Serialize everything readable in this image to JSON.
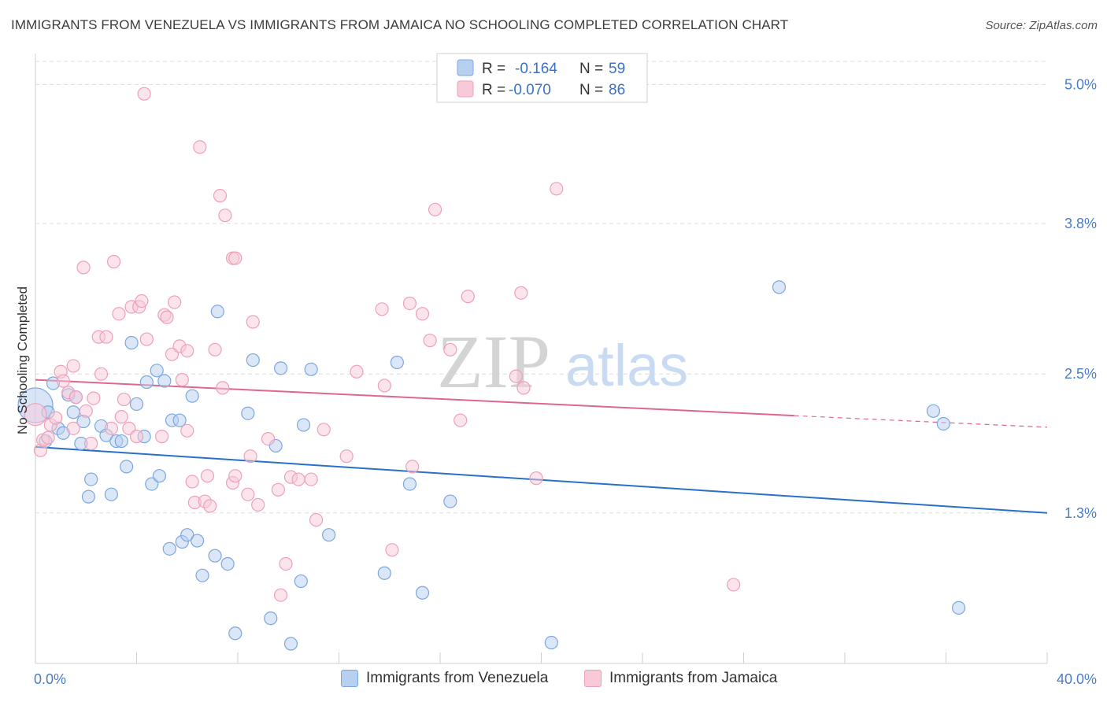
{
  "title": "IMMIGRANTS FROM VENEZUELA VS IMMIGRANTS FROM JAMAICA NO SCHOOLING COMPLETED CORRELATION CHART",
  "source": "Source: ZipAtlas.com",
  "watermark": {
    "zip": "ZIP",
    "atlas": "atlas"
  },
  "legend_stats": [
    {
      "r_label": "R =",
      "r_value": "-0.164",
      "n_label": "N =",
      "n_value": "59"
    },
    {
      "r_label": "R =",
      "r_value": "-0.070",
      "n_label": "N =",
      "n_value": "86"
    }
  ],
  "chart_data": {
    "type": "scatter",
    "title": "IMMIGRANTS FROM VENEZUELA VS IMMIGRANTS FROM JAMAICA NO SCHOOLING COMPLETED CORRELATION CHART",
    "xlabel": "",
    "ylabel": "No Schooling Completed",
    "xlim": [
      0,
      40
    ],
    "ylim": [
      0,
      5.2
    ],
    "x_tick_labels": [
      "0.0%",
      "40.0%"
    ],
    "y_ticks": [
      1.3,
      2.5,
      3.8,
      5.0
    ],
    "y_tick_labels": [
      "1.3%",
      "2.5%",
      "3.8%",
      "5.0%"
    ],
    "grid": true,
    "legend_position": "top-center",
    "series": [
      {
        "name": "Immigrants from Venezuela",
        "color": "#7ba7e0",
        "fill": "#b8d0f0",
        "trend_color": "#2a70c8",
        "trend": {
          "x0": 0,
          "y0": 1.87,
          "x1": 40,
          "y1": 1.3
        },
        "points": [
          [
            0.0,
            2.23
          ],
          [
            0.5,
            2.17
          ],
          [
            0.4,
            1.92
          ],
          [
            0.7,
            2.42
          ],
          [
            0.9,
            2.03
          ],
          [
            1.1,
            1.99
          ],
          [
            1.3,
            2.32
          ],
          [
            1.5,
            2.17
          ],
          [
            1.6,
            2.3
          ],
          [
            1.9,
            2.09
          ],
          [
            1.8,
            1.9
          ],
          [
            2.2,
            1.59
          ],
          [
            2.1,
            1.44
          ],
          [
            2.6,
            2.05
          ],
          [
            2.8,
            1.97
          ],
          [
            3.0,
            1.46
          ],
          [
            3.2,
            1.92
          ],
          [
            3.4,
            1.92
          ],
          [
            3.6,
            1.7
          ],
          [
            3.8,
            2.77
          ],
          [
            4.0,
            2.24
          ],
          [
            4.3,
            1.96
          ],
          [
            4.4,
            2.43
          ],
          [
            4.6,
            1.55
          ],
          [
            4.8,
            2.53
          ],
          [
            4.9,
            1.62
          ],
          [
            5.1,
            2.44
          ],
          [
            5.3,
            0.99
          ],
          [
            5.4,
            2.1
          ],
          [
            5.7,
            2.1
          ],
          [
            5.8,
            1.05
          ],
          [
            6.0,
            1.11
          ],
          [
            6.2,
            2.31
          ],
          [
            6.4,
            1.06
          ],
          [
            6.6,
            0.76
          ],
          [
            7.1,
            0.93
          ],
          [
            7.2,
            3.04
          ],
          [
            7.6,
            0.86
          ],
          [
            7.9,
            0.26
          ],
          [
            8.4,
            2.16
          ],
          [
            8.6,
            2.62
          ],
          [
            9.3,
            0.39
          ],
          [
            9.5,
            1.88
          ],
          [
            9.7,
            2.55
          ],
          [
            10.1,
            0.17
          ],
          [
            10.5,
            0.71
          ],
          [
            10.6,
            2.06
          ],
          [
            10.9,
            2.54
          ],
          [
            11.6,
            1.11
          ],
          [
            13.8,
            0.78
          ],
          [
            14.3,
            2.6
          ],
          [
            14.8,
            1.55
          ],
          [
            15.3,
            0.61
          ],
          [
            16.4,
            1.4
          ],
          [
            20.4,
            0.18
          ],
          [
            29.4,
            3.25
          ],
          [
            35.5,
            2.18
          ],
          [
            35.9,
            2.07
          ],
          [
            36.5,
            0.48
          ]
        ]
      },
      {
        "name": "Immigrants from Jamaica",
        "color": "#eea0b8",
        "fill": "#f8cad8",
        "trend_color": "#e06690",
        "trend": {
          "x0": 0,
          "y0": 2.45,
          "x1": 30,
          "y1": 2.14
        },
        "trend_dashed": {
          "x0": 30,
          "y0": 2.14,
          "x1": 40,
          "y1": 2.04
        },
        "points": [
          [
            0.0,
            2.15
          ],
          [
            0.2,
            1.84
          ],
          [
            0.3,
            1.93
          ],
          [
            0.5,
            1.95
          ],
          [
            0.6,
            2.06
          ],
          [
            0.8,
            2.12
          ],
          [
            1.0,
            2.52
          ],
          [
            1.1,
            2.44
          ],
          [
            1.3,
            2.34
          ],
          [
            1.5,
            2.57
          ],
          [
            1.5,
            2.03
          ],
          [
            1.6,
            2.3
          ],
          [
            1.9,
            3.42
          ],
          [
            2.0,
            2.18
          ],
          [
            2.2,
            1.9
          ],
          [
            2.3,
            2.29
          ],
          [
            2.5,
            2.82
          ],
          [
            2.6,
            2.5
          ],
          [
            2.8,
            2.82
          ],
          [
            3.0,
            2.03
          ],
          [
            3.1,
            3.47
          ],
          [
            3.3,
            3.02
          ],
          [
            3.4,
            2.13
          ],
          [
            3.5,
            2.28
          ],
          [
            3.7,
            2.03
          ],
          [
            3.8,
            3.08
          ],
          [
            4.0,
            1.96
          ],
          [
            4.1,
            3.08
          ],
          [
            4.2,
            3.13
          ],
          [
            4.3,
            4.92
          ],
          [
            4.4,
            2.8
          ],
          [
            5.0,
            1.96
          ],
          [
            5.1,
            3.01
          ],
          [
            5.2,
            2.99
          ],
          [
            5.4,
            2.67
          ],
          [
            5.5,
            3.12
          ],
          [
            5.7,
            2.74
          ],
          [
            5.8,
            2.45
          ],
          [
            6.0,
            2.7
          ],
          [
            6.0,
            2.01
          ],
          [
            6.2,
            1.57
          ],
          [
            6.3,
            1.39
          ],
          [
            6.5,
            4.46
          ],
          [
            6.7,
            1.4
          ],
          [
            6.8,
            1.62
          ],
          [
            6.9,
            1.36
          ],
          [
            7.1,
            2.71
          ],
          [
            7.3,
            4.04
          ],
          [
            7.4,
            2.38
          ],
          [
            7.5,
            3.87
          ],
          [
            7.8,
            3.5
          ],
          [
            7.8,
            1.56
          ],
          [
            7.9,
            3.5
          ],
          [
            7.9,
            1.62
          ],
          [
            8.4,
            1.46
          ],
          [
            8.5,
            1.79
          ],
          [
            8.6,
            2.95
          ],
          [
            8.8,
            1.37
          ],
          [
            9.2,
            1.94
          ],
          [
            9.6,
            1.5
          ],
          [
            9.7,
            0.59
          ],
          [
            9.9,
            0.86
          ],
          [
            10.1,
            1.61
          ],
          [
            10.4,
            1.59
          ],
          [
            10.9,
            1.59
          ],
          [
            11.1,
            1.24
          ],
          [
            11.4,
            2.02
          ],
          [
            12.3,
            1.79
          ],
          [
            12.7,
            2.52
          ],
          [
            13.7,
            3.06
          ],
          [
            13.8,
            2.4
          ],
          [
            14.1,
            0.98
          ],
          [
            14.8,
            3.11
          ],
          [
            14.9,
            1.7
          ],
          [
            15.3,
            3.02
          ],
          [
            15.6,
            2.79
          ],
          [
            15.8,
            3.92
          ],
          [
            16.4,
            2.71
          ],
          [
            16.8,
            2.1
          ],
          [
            17.1,
            3.17
          ],
          [
            19.8,
            1.6
          ],
          [
            19.2,
            3.2
          ],
          [
            19.0,
            2.48
          ],
          [
            19.3,
            2.38
          ],
          [
            20.6,
            4.1
          ],
          [
            27.6,
            0.68
          ]
        ]
      }
    ]
  }
}
